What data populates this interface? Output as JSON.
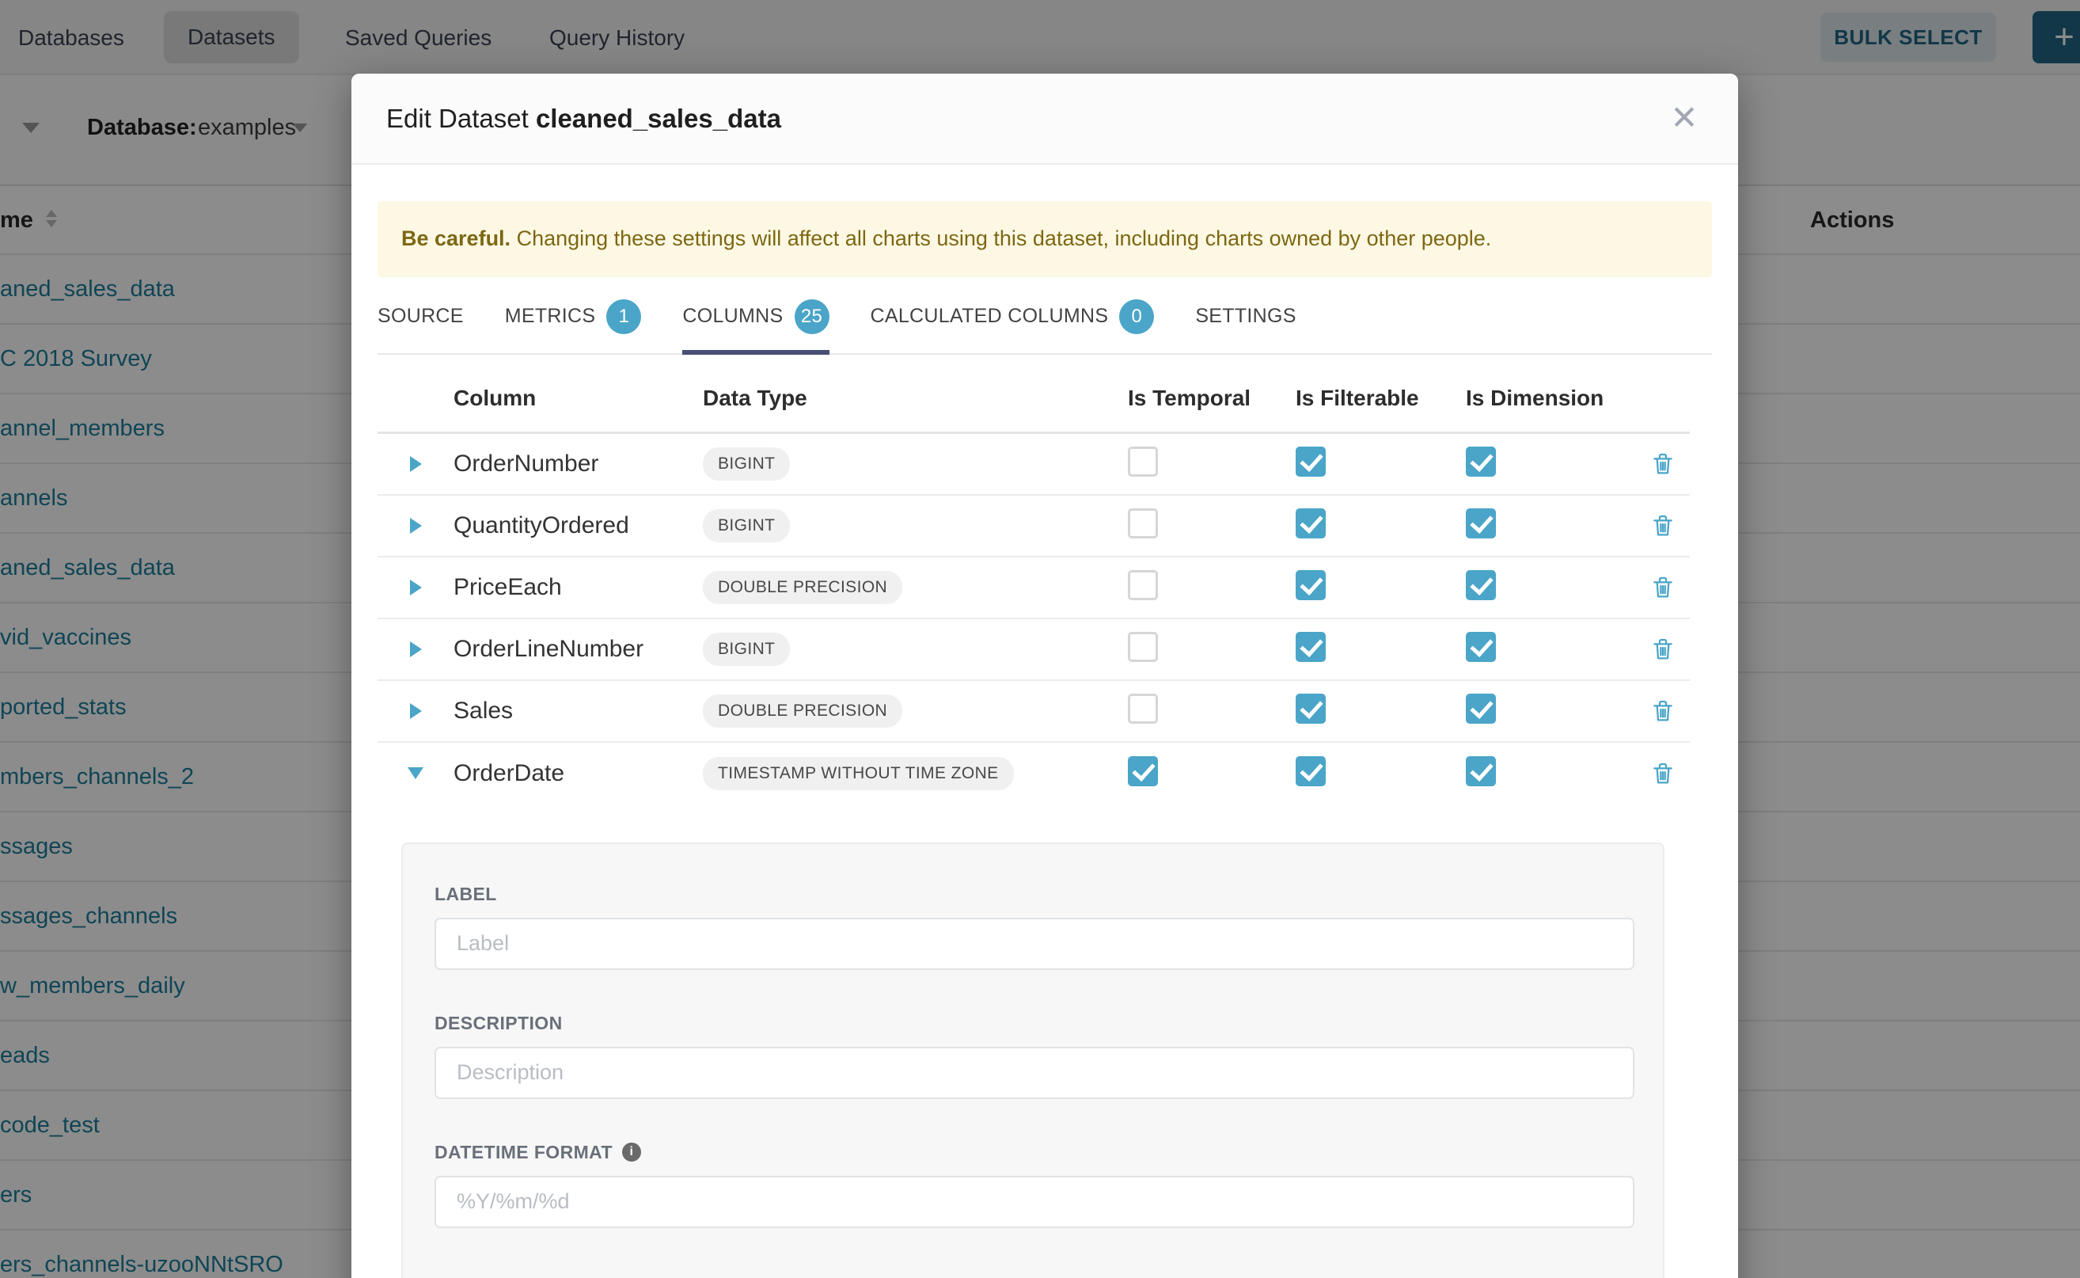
{
  "nav": {
    "items": [
      "Databases",
      "Datasets",
      "Saved Queries",
      "Query History"
    ],
    "active_item": "Datasets",
    "bulk_select_label": "BULK SELECT",
    "add_button_label": "+"
  },
  "background": {
    "database_label": "Database:",
    "database_value": "examples",
    "name_column_header": "me",
    "actions_header": "Actions",
    "dataset_links": [
      "aned_sales_data",
      "C 2018 Survey",
      "annel_members",
      "annels",
      "aned_sales_data",
      "vid_vaccines",
      "ported_stats",
      "mbers_channels_2",
      "ssages",
      "ssages_channels",
      "w_members_daily",
      "eads",
      "code_test",
      "ers",
      "ers_channels-uzooNNtSRO"
    ]
  },
  "modal": {
    "title_prefix": "Edit Dataset",
    "dataset_name": "cleaned_sales_data",
    "close_label": "✕",
    "warning_bold": "Be careful.",
    "warning_text": " Changing these settings will affect all charts using this dataset, including charts owned by other people.",
    "tabs": [
      {
        "label": "SOURCE"
      },
      {
        "label": "METRICS",
        "badge": "1"
      },
      {
        "label": "COLUMNS",
        "badge": "25",
        "active": true
      },
      {
        "label": "CALCULATED COLUMNS",
        "badge": "0"
      },
      {
        "label": "SETTINGS"
      }
    ],
    "table": {
      "headers": [
        "Column",
        "Data Type",
        "Is Temporal",
        "Is Filterable",
        "Is Dimension"
      ],
      "rows": [
        {
          "name": "OrderNumber",
          "type": "BIGINT",
          "temporal": false,
          "filterable": true,
          "dimension": true,
          "expanded": false
        },
        {
          "name": "QuantityOrdered",
          "type": "BIGINT",
          "temporal": false,
          "filterable": true,
          "dimension": true,
          "expanded": false
        },
        {
          "name": "PriceEach",
          "type": "DOUBLE PRECISION",
          "temporal": false,
          "filterable": true,
          "dimension": true,
          "expanded": false
        },
        {
          "name": "OrderLineNumber",
          "type": "BIGINT",
          "temporal": false,
          "filterable": true,
          "dimension": true,
          "expanded": false
        },
        {
          "name": "Sales",
          "type": "DOUBLE PRECISION",
          "temporal": false,
          "filterable": true,
          "dimension": true,
          "expanded": false
        },
        {
          "name": "OrderDate",
          "type": "TIMESTAMP WITHOUT TIME ZONE",
          "temporal": true,
          "filterable": true,
          "dimension": true,
          "expanded": true
        }
      ]
    },
    "form": {
      "label_label": "LABEL",
      "label_placeholder": "Label",
      "description_label": "DESCRIPTION",
      "description_placeholder": "Description",
      "datetime_label": "DATETIME FORMAT",
      "datetime_placeholder": "%Y/%m/%d"
    }
  },
  "colors": {
    "accent": "#4aa5c8",
    "active_tab_underline": "#474f74",
    "warning_bg": "#fdf8e3",
    "warning_text": "#7d6713",
    "link": "#1c7e9b"
  }
}
